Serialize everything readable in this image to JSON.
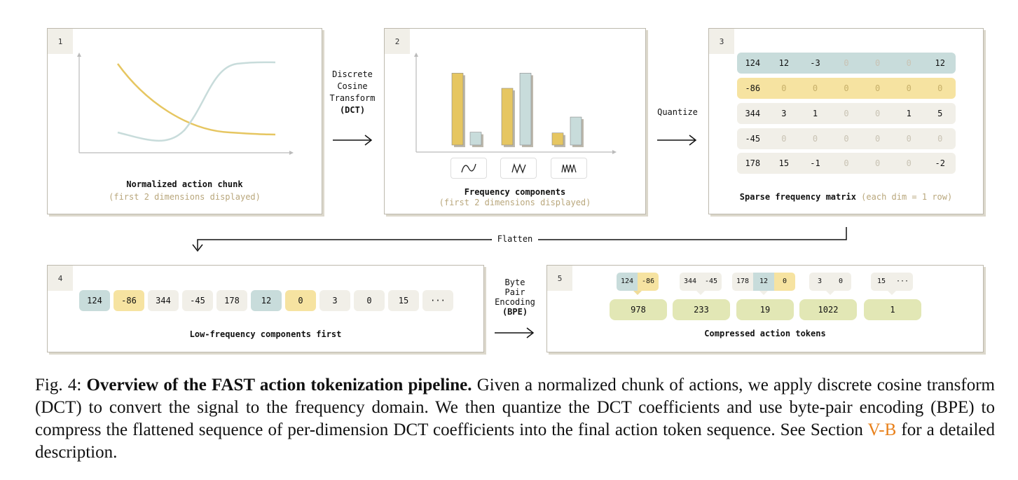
{
  "panels": {
    "p1": {
      "num": "1",
      "title": "Normalized action chunk",
      "subtitle": "(first 2 dimensions displayed)"
    },
    "p2": {
      "num": "2",
      "title": "Frequency components",
      "subtitle": "(first 2 dimensions displayed)",
      "freq_icons": [
        "sine-low-icon",
        "sine-mid-icon",
        "sine-high-icon"
      ]
    },
    "p3": {
      "num": "3",
      "title": "Sparse frequency matrix",
      "subtitle": "(each dim = 1 row)"
    },
    "p4": {
      "num": "4",
      "title": "Low-frequency components first"
    },
    "p5": {
      "num": "5",
      "title": "Compressed action tokens"
    }
  },
  "steps": {
    "dct": {
      "line1": "Discrete",
      "line2": "Cosine",
      "line3": "Transform",
      "line4": "(DCT)"
    },
    "quantize": "Quantize",
    "flatten": "Flatten",
    "bpe": {
      "line1": "Byte",
      "line2": "Pair",
      "line3": "Encoding",
      "line4": "(BPE)"
    }
  },
  "chart_data": {
    "type": "bar",
    "series": [
      {
        "values": [
          0.95,
          0.75,
          0.16
        ],
        "color": "#e6c661"
      },
      {
        "values": [
          0.17,
          0.95,
          0.37
        ],
        "color": "#c8dcdb"
      }
    ]
  },
  "matrix": {
    "rows": [
      [
        "124",
        "12",
        "-3",
        "0",
        "0",
        "0",
        "12"
      ],
      [
        "-86",
        "0",
        "0",
        "0",
        "0",
        "0",
        "0"
      ],
      [
        "344",
        "3",
        "1",
        "0",
        "0",
        "1",
        "5"
      ],
      [
        "-45",
        "0",
        "0",
        "0",
        "0",
        "0",
        "0"
      ],
      [
        "178",
        "15",
        "-1",
        "0",
        "0",
        "0",
        "-2"
      ]
    ]
  },
  "sequence": [
    "124",
    "-86",
    "344",
    "-45",
    "178",
    "12",
    "0",
    "3",
    "0",
    "15",
    "···"
  ],
  "bpe_pairs": [
    [
      "124",
      "-86"
    ],
    [
      "344",
      "-45"
    ],
    [
      "178",
      "12",
      "0"
    ],
    [
      "3",
      "0"
    ],
    [
      "15",
      "···"
    ]
  ],
  "tokens": [
    "978",
    "233",
    "19",
    "1022",
    "1"
  ],
  "colors": {
    "teal": "#c8dcdb",
    "yellow": "#f6e3a1",
    "light": "#f1efe8",
    "green": "#e2e7b5"
  },
  "caption": {
    "label": "Fig. 4:",
    "bold": "Overview of the FAST action tokenization pipeline.",
    "text1": "Given a normalized chunk of actions, we apply discrete cosine transform (DCT) to convert the signal to the frequency domain. We then quantize the DCT coefficients and use byte-pair encoding (BPE) to compress the flattened sequence of per-dimension DCT coefficients into the final action token sequence. See Section",
    "link": "V-B",
    "text2": "for a detailed description."
  }
}
